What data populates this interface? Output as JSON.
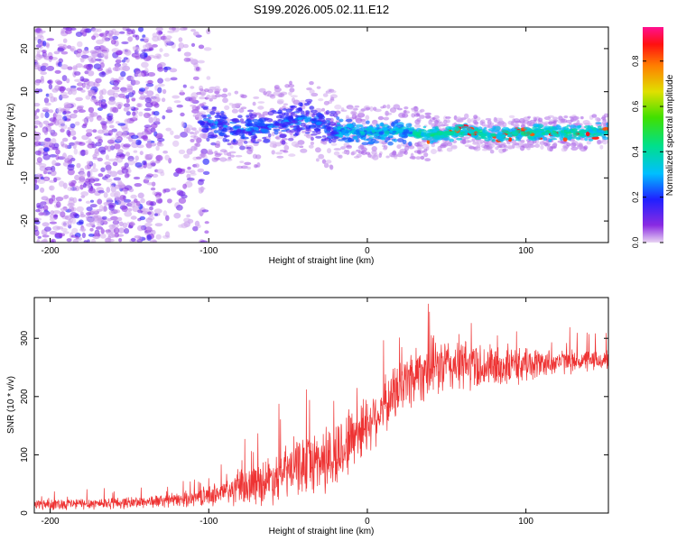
{
  "title": "S199.2026.005.02.11.E12",
  "colors": {
    "signal": "#ee3333",
    "axis": "#000000"
  },
  "chart_data": [
    {
      "type": "heatmap",
      "name": "spectrogram",
      "xlabel": "Height of straight line (km)",
      "ylabel": "Frequency (Hz)",
      "xlim": [
        -210,
        152
      ],
      "ylim": [
        -25,
        25
      ],
      "xticks": [
        -200,
        -100,
        0,
        100
      ],
      "xtick_labels": [
        "-200",
        "-100",
        "0",
        "100"
      ],
      "yticks": [
        -20,
        -10,
        0,
        10,
        20
      ],
      "ytick_labels": [
        "-20",
        "-10",
        "0",
        "10",
        "20"
      ],
      "colorbar": {
        "label": "Normalized spectral amplitude",
        "range": [
          0,
          0.95
        ],
        "ticks": [
          0.0,
          0.2,
          0.4,
          0.6,
          0.8
        ],
        "tick_labels": [
          "0.0",
          "0.2",
          "0.4",
          "0.6",
          "0.8"
        ],
        "colormap": "rainbow (purple-blue-cyan-green-yellow-red-magenta)"
      },
      "description_points": {
        "noise_region_x": [
          -210,
          -110
        ],
        "transition_region_x": [
          -100,
          -20
        ],
        "signal_centerline_hz": [
          [
            -100,
            3
          ],
          [
            -80,
            1
          ],
          [
            -60,
            2
          ],
          [
            -40,
            4
          ],
          [
            -20,
            1
          ],
          [
            0,
            0.5
          ],
          [
            20,
            0.8
          ],
          [
            40,
            0
          ],
          [
            60,
            0.8
          ],
          [
            80,
            0
          ],
          [
            100,
            0.5
          ],
          [
            120,
            0.5
          ],
          [
            150,
            0.8
          ]
        ]
      }
    },
    {
      "type": "line",
      "name": "snr",
      "xlabel": "Height of straight line (km)",
      "ylabel": "SNR (10 * v/v)",
      "xlim": [
        -210,
        152
      ],
      "ylim": [
        0,
        370
      ],
      "xticks": [
        -200,
        -100,
        0,
        100
      ],
      "xtick_labels": [
        "-200",
        "-100",
        "0",
        "100"
      ],
      "yticks": [
        0,
        100,
        200,
        300
      ],
      "ytick_labels": [
        "0",
        "100",
        "200",
        "300"
      ],
      "envelope": {
        "x": [
          -210,
          -180,
          -150,
          -120,
          -100,
          -80,
          -60,
          -40,
          -20,
          -10,
          0,
          10,
          20,
          30,
          40,
          60,
          80,
          100,
          120,
          152
        ],
        "mean": [
          15,
          16,
          18,
          22,
          30,
          42,
          60,
          85,
          95,
          130,
          155,
          180,
          215,
          240,
          250,
          255,
          250,
          255,
          260,
          262
        ],
        "spread": [
          12,
          12,
          12,
          14,
          20,
          35,
          50,
          60,
          75,
          70,
          60,
          55,
          60,
          65,
          60,
          55,
          45,
          35,
          25,
          20
        ]
      }
    }
  ]
}
